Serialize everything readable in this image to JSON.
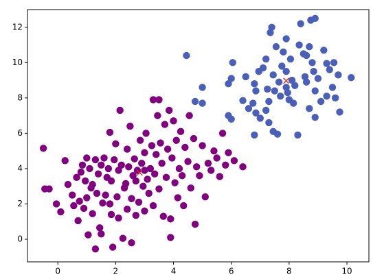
{
  "chart_data": {
    "type": "scatter",
    "xlim": [
      -1.05,
      10.76
    ],
    "ylim": [
      -1.28,
      13.0
    ],
    "xticks": [
      0,
      2,
      4,
      6,
      8,
      10
    ],
    "yticks": [
      0,
      2,
      4,
      6,
      8,
      10,
      12
    ],
    "grid": false,
    "series": [
      {
        "color": "#800080",
        "marker": "o",
        "x": [
          -0.5,
          -0.45,
          -0.3,
          -0.05,
          0.1,
          0.25,
          0.35,
          0.5,
          0.55,
          0.65,
          0.7,
          0.75,
          0.8,
          0.85,
          0.9,
          0.95,
          1.0,
          1.0,
          1.05,
          1.1,
          1.15,
          1.2,
          1.2,
          1.3,
          1.3,
          1.35,
          1.4,
          1.45,
          1.5,
          1.5,
          1.55,
          1.6,
          1.65,
          1.7,
          1.75,
          1.8,
          1.8,
          1.85,
          1.85,
          1.9,
          1.95,
          2.0,
          2.05,
          2.1,
          2.1,
          2.15,
          2.2,
          2.25,
          2.3,
          2.35,
          2.4,
          2.4,
          2.45,
          2.5,
          2.55,
          2.55,
          2.6,
          2.65,
          2.7,
          2.75,
          2.8,
          2.85,
          2.9,
          2.95,
          3.0,
          3.0,
          3.05,
          3.1,
          3.15,
          3.2,
          3.25,
          3.3,
          3.3,
          3.35,
          3.4,
          3.45,
          3.5,
          3.5,
          3.55,
          3.6,
          3.65,
          3.7,
          3.75,
          3.8,
          3.85,
          3.9,
          3.9,
          3.95,
          4.0,
          4.05,
          4.1,
          4.15,
          4.2,
          4.25,
          4.3,
          4.35,
          4.4,
          4.5,
          4.55,
          4.6,
          4.7,
          4.75,
          4.8,
          4.9,
          5.0,
          5.1,
          5.2,
          5.3,
          5.4,
          5.5,
          5.6,
          5.7,
          5.9,
          6.1,
          6.4,
          5.8,
          3.0,
          2.7
        ],
        "y": [
          5.15,
          2.85,
          2.85,
          2.0,
          1.55,
          4.45,
          3.1,
          2.5,
          1.9,
          3.5,
          1.05,
          2.15,
          3.8,
          4.2,
          1.75,
          3.3,
          4.6,
          2.35,
          0.25,
          4.0,
          2.9,
          1.45,
          3.1,
          -0.55,
          4.5,
          2.6,
          3.7,
          0.65,
          0.3,
          4.2,
          2.05,
          4.6,
          2.5,
          3.5,
          4.0,
          6.05,
          2.0,
          1.4,
          3.3,
          -0.45,
          4.5,
          5.4,
          2.4,
          1.2,
          3.9,
          7.3,
          4.2,
          0.05,
          2.9,
          3.15,
          5.1,
          1.7,
          4.1,
          6.4,
          2.3,
          -0.2,
          3.6,
          4.55,
          1.35,
          3.9,
          2.1,
          5.6,
          4.3,
          3.0,
          1.6,
          4.9,
          6.0,
          3.4,
          2.6,
          4.0,
          5.3,
          7.9,
          1.9,
          3.7,
          4.8,
          7.0,
          7.9,
          2.85,
          5.45,
          4.3,
          1.3,
          6.5,
          3.5,
          5.1,
          7.3,
          0.1,
          1.15,
          4.6,
          6.7,
          3.2,
          5.6,
          2.35,
          4.0,
          6.1,
          3.6,
          1.9,
          5.2,
          4.4,
          7.0,
          2.9,
          5.7,
          0.85,
          4.1,
          3.6,
          5.3,
          2.4,
          4.3,
          3.9,
          5.0,
          4.6,
          3.55,
          6.0,
          4.9,
          4.45,
          4.1,
          4.2,
          3.9,
          3.3
        ]
      },
      {
        "color": "#4a5fb8",
        "marker": "o",
        "x": [
          4.45,
          4.75,
          5.0,
          5.0,
          5.9,
          6.0,
          6.05,
          5.9,
          6.0,
          6.4,
          6.6,
          6.5,
          6.75,
          6.8,
          6.85,
          6.85,
          6.8,
          7.0,
          6.95,
          7.1,
          7.2,
          7.25,
          7.3,
          7.3,
          7.35,
          7.4,
          7.45,
          7.45,
          7.5,
          7.55,
          7.6,
          7.65,
          7.7,
          7.75,
          7.8,
          7.9,
          7.9,
          7.95,
          8.0,
          8.05,
          8.1,
          8.2,
          8.3,
          8.35,
          8.4,
          8.5,
          8.55,
          8.6,
          8.7,
          8.75,
          8.8,
          8.9,
          8.85,
          8.9,
          8.9,
          9.0,
          9.1,
          9.2,
          9.3,
          9.3,
          9.5,
          9.55,
          9.7,
          9.75,
          9.6,
          10.15,
          7.9,
          8.15,
          8.6,
          7.2,
          9.4,
          8.7
        ],
        "y": [
          10.4,
          7.8,
          8.6,
          7.7,
          8.8,
          9.1,
          10.0,
          7.0,
          6.8,
          7.85,
          7.4,
          9.2,
          7.7,
          8.8,
          8.4,
          7.15,
          5.9,
          6.85,
          9.5,
          9.7,
          10.2,
          8.5,
          7.8,
          6.6,
          11.7,
          12.0,
          9.3,
          6.1,
          8.4,
          10.9,
          5.95,
          8.9,
          8.1,
          9.8,
          10.6,
          11.35,
          9.5,
          8.3,
          7.9,
          10.2,
          9.0,
          8.7,
          5.9,
          11.0,
          12.2,
          10.5,
          9.2,
          8.9,
          7.4,
          12.4,
          10.0,
          12.5,
          9.5,
          6.9,
          8.4,
          9.1,
          7.8,
          10.7,
          9.95,
          8.1,
          8.6,
          10.0,
          9.3,
          7.2,
          8.0,
          9.15,
          8.6,
          7.7,
          10.4,
          7.3,
          9.6,
          10.9
        ]
      },
      {
        "color": "#e02020",
        "marker": "x",
        "x": [
          2.83,
          7.9
        ],
        "y": [
          3.77,
          8.97
        ]
      }
    ]
  }
}
